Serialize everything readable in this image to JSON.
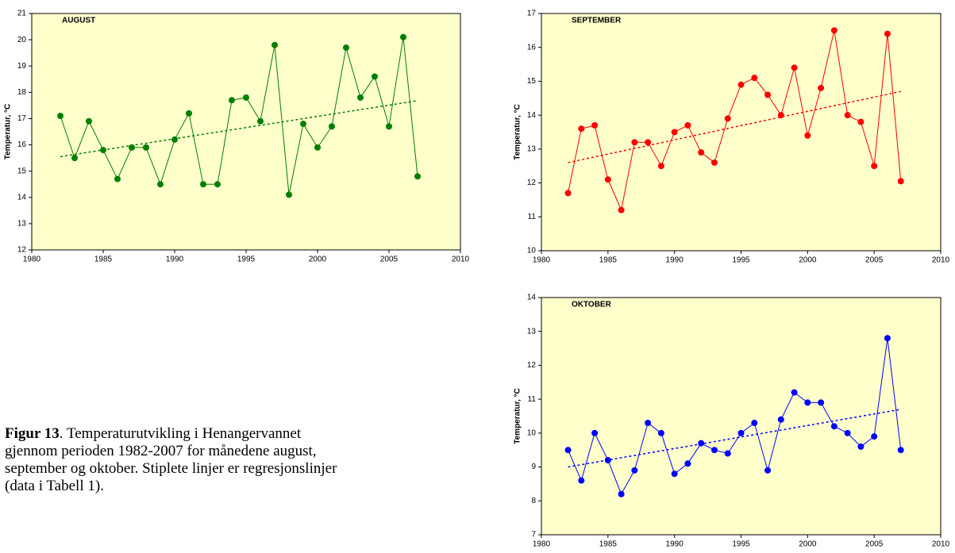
{
  "chart_data": [
    {
      "type": "line",
      "title": "AUGUST",
      "y_label": "Temperatur, °C",
      "color": "#007f00",
      "background": "#ffffcc",
      "x": [
        1982,
        1983,
        1984,
        1985,
        1986,
        1987,
        1988,
        1989,
        1990,
        1991,
        1992,
        1993,
        1994,
        1995,
        1996,
        1997,
        1998,
        1999,
        2000,
        2001,
        2002,
        2003,
        2004,
        2005,
        2006,
        2007
      ],
      "values": [
        17.1,
        15.5,
        16.9,
        15.8,
        14.7,
        15.9,
        15.9,
        14.5,
        16.2,
        17.2,
        14.5,
        14.5,
        17.7,
        17.8,
        16.9,
        19.8,
        14.1,
        16.8,
        15.9,
        16.7,
        19.7,
        17.8,
        18.6,
        16.7,
        20.1,
        14.8
      ],
      "trend": {
        "x": [
          1982,
          2007
        ],
        "values": [
          15.55,
          17.68
        ]
      },
      "xlim": [
        1980,
        2010
      ],
      "xticks": [
        1980,
        1985,
        1990,
        1995,
        2000,
        2005,
        2010
      ],
      "ylim": [
        12,
        21
      ],
      "yticks": [
        12,
        13,
        14,
        15,
        16,
        17,
        18,
        19,
        20,
        21
      ]
    },
    {
      "type": "line",
      "title": "SEPTEMBER",
      "y_label": "Temperatur, °C",
      "color": "#ff0000",
      "background": "#ffffcc",
      "x": [
        1982,
        1983,
        1984,
        1985,
        1986,
        1987,
        1988,
        1989,
        1990,
        1991,
        1992,
        1993,
        1994,
        1995,
        1996,
        1997,
        1998,
        1999,
        2000,
        2001,
        2002,
        2003,
        2004,
        2005,
        2006,
        2007
      ],
      "values": [
        11.7,
        13.6,
        13.7,
        12.1,
        11.2,
        13.2,
        13.2,
        12.5,
        13.5,
        13.7,
        12.9,
        12.6,
        13.9,
        14.9,
        15.1,
        14.6,
        14.0,
        15.4,
        13.4,
        14.8,
        16.5,
        14.0,
        13.8,
        12.5,
        16.4,
        12.05
      ],
      "trend": {
        "x": [
          1982,
          2007
        ],
        "values": [
          12.6,
          14.7
        ]
      },
      "xlim": [
        1980,
        2010
      ],
      "xticks": [
        1980,
        1985,
        1990,
        1995,
        2000,
        2005,
        2010
      ],
      "ylim": [
        10,
        17
      ],
      "yticks": [
        10,
        11,
        12,
        13,
        14,
        15,
        16,
        17
      ]
    },
    {
      "type": "line",
      "title": "OKTOBER",
      "y_label": "Temperatur, °C",
      "color": "#0000ff",
      "background": "#ffffcc",
      "x": [
        1982,
        1983,
        1984,
        1985,
        1986,
        1987,
        1988,
        1989,
        1990,
        1991,
        1992,
        1993,
        1994,
        1995,
        1996,
        1997,
        1998,
        1999,
        2000,
        2001,
        2002,
        2003,
        2004,
        2005,
        2006,
        2007
      ],
      "values": [
        9.5,
        8.6,
        10.0,
        9.2,
        8.2,
        8.9,
        10.3,
        10.0,
        8.8,
        9.1,
        9.7,
        9.5,
        9.4,
        10.0,
        10.3,
        8.9,
        10.4,
        11.2,
        10.9,
        10.9,
        10.2,
        10.0,
        9.6,
        9.9,
        12.8,
        9.5
      ],
      "trend": {
        "x": [
          1982,
          2007
        ],
        "values": [
          9.0,
          10.7
        ]
      },
      "xlim": [
        1980,
        2010
      ],
      "xticks": [
        1980,
        1985,
        1990,
        1995,
        2000,
        2005,
        2010
      ],
      "ylim": [
        7,
        14
      ],
      "yticks": [
        7,
        8,
        9,
        10,
        11,
        12,
        13,
        14
      ]
    }
  ],
  "caption": {
    "label": "Figur 13",
    "lines": [
      ". Temperaturutvikling i Henangervannet",
      "gjennom perioden 1982-2007 for månedene august,",
      "september og oktober. Stiplete linjer er regresjonslinjer",
      "(data i Tabell 1)."
    ]
  }
}
